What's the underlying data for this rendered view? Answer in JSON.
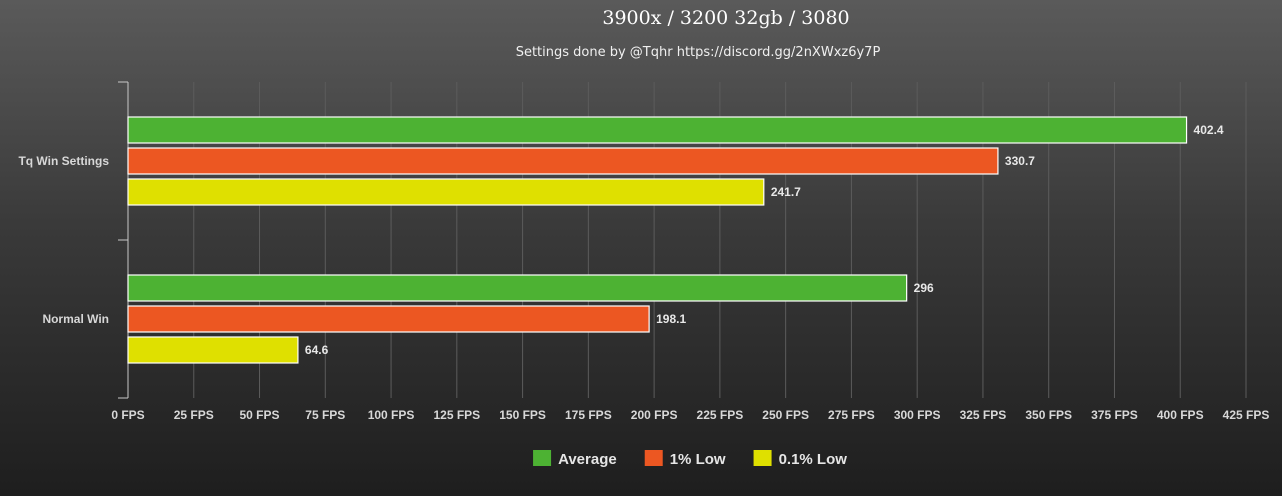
{
  "chart_data": {
    "type": "bar",
    "orientation": "horizontal",
    "title": "3900x / 3200 32gb / 3080",
    "subtitle": "Settings done by @Tqhr https://discord.gg/2nXWxz6y7P",
    "categories": [
      "Tq Win Settings",
      "Normal Win"
    ],
    "series": [
      {
        "name": "Average",
        "color": "#4db233",
        "values": [
          402.4,
          296
        ]
      },
      {
        "name": "1% Low",
        "color": "#ec5722",
        "values": [
          330.7,
          198.1
        ]
      },
      {
        "name": "0.1% Low",
        "color": "#dfe000",
        "values": [
          241.7,
          64.6
        ]
      }
    ],
    "data_labels": [
      [
        "402.4",
        "296"
      ],
      [
        "330.7",
        "198.1"
      ],
      [
        "241.7",
        "64.6"
      ]
    ],
    "xlim": [
      0,
      425
    ],
    "tick_values": [
      0,
      25,
      50,
      75,
      100,
      125,
      150,
      175,
      200,
      225,
      250,
      275,
      300,
      325,
      350,
      375,
      400,
      425
    ],
    "tick_labels": [
      "0 FPS",
      "25 FPS",
      "50 FPS",
      "75 FPS",
      "100 FPS",
      "125 FPS",
      "150 FPS",
      "175 FPS",
      "200 FPS",
      "225 FPS",
      "250 FPS",
      "275 FPS",
      "300 FPS",
      "325 FPS",
      "350 FPS",
      "375 FPS",
      "400 FPS",
      "425 FPS"
    ],
    "grid": true,
    "legend_position": "bottom-center"
  }
}
